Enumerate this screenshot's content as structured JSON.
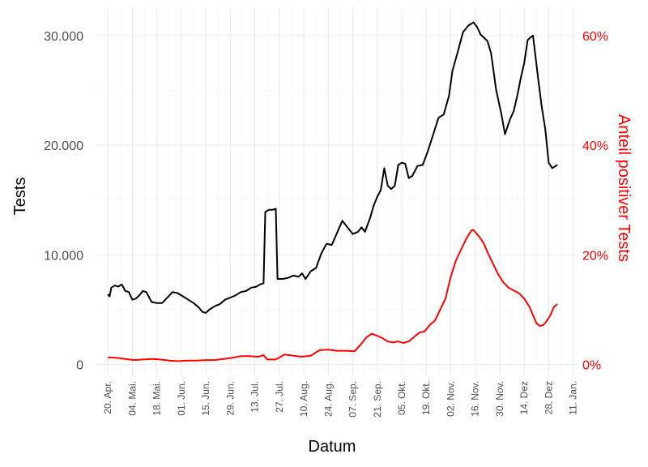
{
  "chart_data": {
    "type": "line",
    "xlabel": "Datum",
    "ylabel": "Tests",
    "y2label": "Anteil positiver Tests",
    "x_ticks": [
      "20. Apr.",
      "04. Mai.",
      "18. Mai.",
      "01. Jun.",
      "15. Jun.",
      "29. Jun.",
      "13. Jul.",
      "27. Jul.",
      "10. Aug.",
      "24. Aug.",
      "07. Sep.",
      "21. Sep.",
      "05. Okt.",
      "19. Okt.",
      "02. Nov.",
      "16. Nov.",
      "30. Nov.",
      "14. Dez",
      "28. Dez",
      "11. Jan."
    ],
    "y_ticks": [
      "0",
      "10.000",
      "20.000",
      "30.000"
    ],
    "y2_ticks": [
      "0%",
      "20%",
      "40%",
      "60%"
    ],
    "xlim": [
      "2020-04-13",
      "2021-01-13"
    ],
    "ylim": [
      -1000,
      32500
    ],
    "y2lim": [
      -0.02,
      0.65
    ],
    "grid": true,
    "colors": {
      "tests": "#000000",
      "positive_share": "#ff0000"
    },
    "series": [
      {
        "axis": "left",
        "color": "#000000",
        "x": [
          "2020-04-20",
          "2020-04-21",
          "2020-04-22",
          "2020-04-24",
          "2020-04-26",
          "2020-04-28",
          "2020-04-30",
          "2020-05-02",
          "2020-05-04",
          "2020-05-06",
          "2020-05-08",
          "2020-05-10",
          "2020-05-12",
          "2020-05-15",
          "2020-05-18",
          "2020-05-21",
          "2020-05-24",
          "2020-05-27",
          "2020-05-30",
          "2020-06-02",
          "2020-06-05",
          "2020-06-08",
          "2020-06-11",
          "2020-06-13",
          "2020-06-15",
          "2020-06-17",
          "2020-06-20",
          "2020-06-23",
          "2020-06-26",
          "2020-06-29",
          "2020-07-02",
          "2020-07-05",
          "2020-07-08",
          "2020-07-11",
          "2020-07-14",
          "2020-07-16",
          "2020-07-18",
          "2020-07-19",
          "2020-07-21",
          "2020-07-23",
          "2020-07-25",
          "2020-07-26",
          "2020-07-29",
          "2020-08-01",
          "2020-08-04",
          "2020-08-07",
          "2020-08-09",
          "2020-08-11",
          "2020-08-14",
          "2020-08-17",
          "2020-08-20",
          "2020-08-23",
          "2020-08-26",
          "2020-08-29",
          "2020-09-01",
          "2020-09-04",
          "2020-09-07",
          "2020-09-10",
          "2020-09-12",
          "2020-09-14",
          "2020-09-17",
          "2020-09-19",
          "2020-09-21",
          "2020-09-23",
          "2020-09-25",
          "2020-09-27",
          "2020-09-29",
          "2020-10-01",
          "2020-10-03",
          "2020-10-05",
          "2020-10-07",
          "2020-10-09",
          "2020-10-11",
          "2020-10-14",
          "2020-10-17",
          "2020-10-20",
          "2020-10-23",
          "2020-10-26",
          "2020-10-29",
          "2020-11-01",
          "2020-11-03",
          "2020-11-06",
          "2020-11-09",
          "2020-11-12",
          "2020-11-15",
          "2020-11-17",
          "2020-11-19",
          "2020-11-21",
          "2020-11-23",
          "2020-11-25",
          "2020-11-28",
          "2020-12-01",
          "2020-12-03",
          "2020-12-06",
          "2020-12-08",
          "2020-12-10",
          "2020-12-12",
          "2020-12-14",
          "2020-12-16",
          "2020-12-19",
          "2020-12-22",
          "2020-12-24",
          "2020-12-26",
          "2020-12-28",
          "2020-12-30",
          "2021-01-01",
          "2021-01-02"
        ],
        "y": [
          6400,
          6200,
          7000,
          7200,
          7100,
          7300,
          6700,
          6600,
          5900,
          6000,
          6300,
          6700,
          6600,
          5700,
          5600,
          5600,
          6100,
          6600,
          6500,
          6200,
          5900,
          5600,
          5200,
          4800,
          4700,
          5000,
          5300,
          5500,
          5900,
          6100,
          6300,
          6600,
          6700,
          7000,
          7100,
          7300,
          7400,
          13900,
          14100,
          14100,
          14200,
          7800,
          7800,
          7900,
          8100,
          8000,
          8300,
          7800,
          8500,
          8800,
          10100,
          11000,
          10900,
          12000,
          13100,
          12500,
          11900,
          12100,
          12500,
          12100,
          13400,
          14500,
          15300,
          15900,
          17900,
          16300,
          16000,
          16300,
          18200,
          18400,
          18300,
          17000,
          17200,
          18100,
          18200,
          19500,
          21000,
          22500,
          22800,
          24500,
          26800,
          28500,
          30300,
          30900,
          31200,
          30800,
          30100,
          29800,
          29500,
          28400,
          25000,
          22800,
          21000,
          22400,
          23100,
          24500,
          26100,
          27500,
          29600,
          30000,
          26000,
          23500,
          21500,
          18400,
          17900,
          18100,
          18200
        ]
      },
      {
        "axis": "right",
        "color": "#ff0000",
        "x": [
          "2020-04-20",
          "2020-04-25",
          "2020-04-30",
          "2020-05-05",
          "2020-05-10",
          "2020-05-15",
          "2020-05-20",
          "2020-05-25",
          "2020-05-30",
          "2020-06-05",
          "2020-06-10",
          "2020-06-15",
          "2020-06-20",
          "2020-06-25",
          "2020-06-30",
          "2020-07-05",
          "2020-07-10",
          "2020-07-15",
          "2020-07-18",
          "2020-07-20",
          "2020-07-25",
          "2020-07-30",
          "2020-08-04",
          "2020-08-09",
          "2020-08-14",
          "2020-08-19",
          "2020-08-24",
          "2020-08-29",
          "2020-09-03",
          "2020-09-08",
          "2020-09-12",
          "2020-09-15",
          "2020-09-18",
          "2020-09-21",
          "2020-09-24",
          "2020-09-27",
          "2020-09-30",
          "2020-10-03",
          "2020-10-06",
          "2020-10-09",
          "2020-10-12",
          "2020-10-15",
          "2020-10-18",
          "2020-10-21",
          "2020-10-24",
          "2020-10-27",
          "2020-10-30",
          "2020-11-02",
          "2020-11-05",
          "2020-11-08",
          "2020-11-11",
          "2020-11-14",
          "2020-11-15",
          "2020-11-17",
          "2020-11-19",
          "2020-11-21",
          "2020-11-23",
          "2020-11-26",
          "2020-11-29",
          "2020-12-02",
          "2020-12-05",
          "2020-12-08",
          "2020-12-11",
          "2020-12-14",
          "2020-12-17",
          "2020-12-19",
          "2020-12-21",
          "2020-12-23",
          "2020-12-25",
          "2020-12-27",
          "2020-12-29",
          "2020-12-31",
          "2021-01-02"
        ],
        "y": [
          0.013,
          0.012,
          0.01,
          0.008,
          0.009,
          0.01,
          0.009,
          0.007,
          0.006,
          0.007,
          0.007,
          0.008,
          0.008,
          0.01,
          0.012,
          0.015,
          0.015,
          0.014,
          0.017,
          0.009,
          0.009,
          0.018,
          0.016,
          0.014,
          0.016,
          0.026,
          0.027,
          0.025,
          0.025,
          0.024,
          0.038,
          0.05,
          0.056,
          0.052,
          0.048,
          0.042,
          0.04,
          0.042,
          0.039,
          0.042,
          0.05,
          0.058,
          0.06,
          0.072,
          0.08,
          0.1,
          0.12,
          0.16,
          0.19,
          0.21,
          0.23,
          0.245,
          0.245,
          0.238,
          0.23,
          0.22,
          0.205,
          0.185,
          0.165,
          0.15,
          0.14,
          0.135,
          0.13,
          0.12,
          0.105,
          0.09,
          0.075,
          0.07,
          0.072,
          0.08,
          0.09,
          0.105,
          0.11
        ]
      }
    ]
  }
}
